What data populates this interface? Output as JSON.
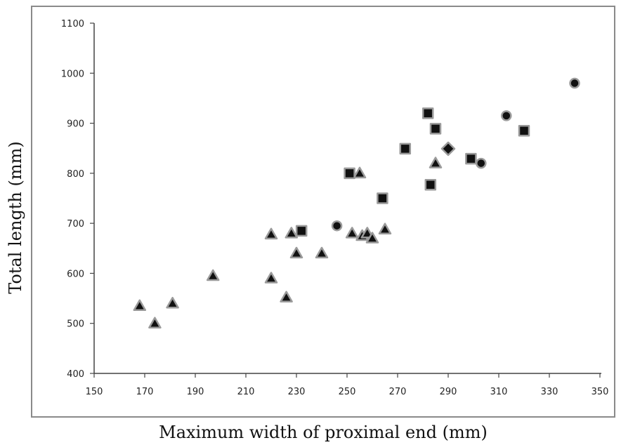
{
  "chart_data": {
    "type": "scatter",
    "xlabel": "Maximum width of proximal end (mm)",
    "ylabel": "Total length (mm)",
    "xlim": [
      150,
      350
    ],
    "ylim": [
      400,
      1100
    ],
    "xticks": [
      150,
      170,
      190,
      210,
      230,
      250,
      270,
      290,
      310,
      330,
      350
    ],
    "yticks": [
      400,
      500,
      600,
      700,
      800,
      900,
      1000,
      1100
    ],
    "grid": false,
    "legend": "none",
    "colors": {
      "marker_fill": "#111111",
      "marker_stroke": "#9a9a9a",
      "axis": "#444444",
      "frame": "#8a8a8a"
    },
    "series": [
      {
        "marker": "triangle",
        "points": [
          [
            168,
            535
          ],
          [
            174,
            500
          ],
          [
            181,
            540
          ],
          [
            197,
            595
          ],
          [
            220,
            590
          ],
          [
            220,
            678
          ],
          [
            226,
            552
          ],
          [
            228,
            680
          ],
          [
            230,
            640
          ],
          [
            240,
            640
          ],
          [
            252,
            680
          ],
          [
            256,
            675
          ],
          [
            258,
            680
          ],
          [
            260,
            670
          ],
          [
            265,
            688
          ],
          [
            255,
            800
          ],
          [
            285,
            820
          ]
        ]
      },
      {
        "marker": "square",
        "points": [
          [
            232,
            685
          ],
          [
            251,
            800
          ],
          [
            264,
            750
          ],
          [
            273,
            849
          ],
          [
            282,
            920
          ],
          [
            283,
            777
          ],
          [
            285,
            889
          ],
          [
            299,
            829
          ],
          [
            320,
            885
          ]
        ]
      },
      {
        "marker": "circle",
        "points": [
          [
            246,
            695
          ],
          [
            303,
            820
          ],
          [
            313,
            915
          ],
          [
            340,
            980
          ]
        ]
      },
      {
        "marker": "diamond",
        "points": [
          [
            290,
            849
          ]
        ]
      }
    ]
  }
}
